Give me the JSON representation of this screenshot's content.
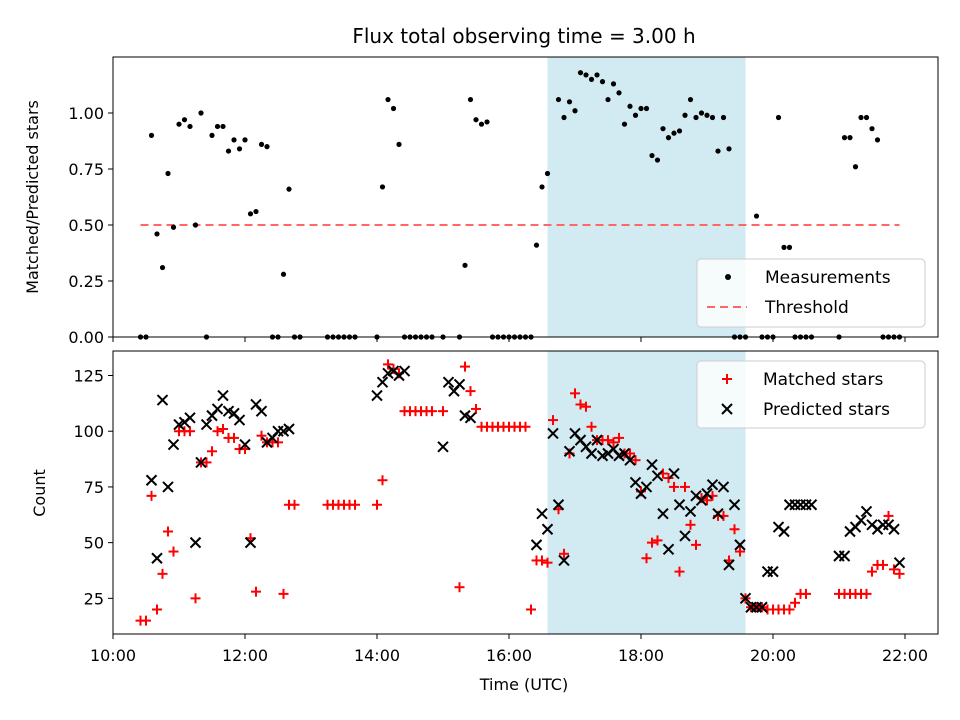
{
  "chart_data": [
    {
      "type": "scatter",
      "title": "Flux total observing time = 3.00 h",
      "xlabel": "",
      "ylabel": "Matched/Predicted stars",
      "xlim": [
        "10:00",
        "22:30"
      ],
      "ylim": [
        0.0,
        1.25
      ],
      "yticks": [
        "0.00",
        "0.25",
        "0.50",
        "0.75",
        "1.00"
      ],
      "ytick_values": [
        0.0,
        0.25,
        0.5,
        0.75,
        1.0
      ],
      "shaded_interval": [
        "16:35",
        "19:35"
      ],
      "legend": "bottom-right",
      "legend_entries": [
        "Measurements",
        "Threshold"
      ],
      "threshold": {
        "name": "Threshold",
        "value": 0.5,
        "x": [
          "10:25",
          "21:55"
        ],
        "color": "#ff6666"
      },
      "series": [
        {
          "name": "Measurements",
          "color": "#000000",
          "x": [
            "10:25",
            "10:30",
            "10:35",
            "10:40",
            "10:45",
            "10:50",
            "10:55",
            "11:00",
            "11:05",
            "11:10",
            "11:15",
            "11:20",
            "11:25",
            "11:30",
            "11:35",
            "11:40",
            "11:45",
            "11:50",
            "11:55",
            "12:00",
            "12:05",
            "12:10",
            "12:15",
            "12:20",
            "12:25",
            "12:30",
            "12:35",
            "12:40",
            "12:45",
            "12:50",
            "13:15",
            "13:20",
            "13:25",
            "13:30",
            "13:35",
            "13:40",
            "14:00",
            "14:05",
            "14:10",
            "14:15",
            "14:20",
            "14:25",
            "14:30",
            "14:35",
            "14:40",
            "14:45",
            "14:50",
            "15:00",
            "15:15",
            "15:20",
            "15:25",
            "15:30",
            "15:35",
            "15:40",
            "15:45",
            "15:50",
            "15:55",
            "16:00",
            "16:05",
            "16:10",
            "16:15",
            "16:20",
            "16:25",
            "16:30",
            "16:35",
            "16:45",
            "16:50",
            "16:55",
            "17:00",
            "17:05",
            "17:10",
            "17:15",
            "17:20",
            "17:25",
            "17:30",
            "17:35",
            "17:40",
            "17:45",
            "17:50",
            "17:55",
            "18:00",
            "18:05",
            "18:10",
            "18:15",
            "18:20",
            "18:25",
            "18:30",
            "18:35",
            "18:40",
            "18:45",
            "18:50",
            "18:55",
            "19:00",
            "19:05",
            "19:10",
            "19:15",
            "19:20",
            "19:25",
            "19:30",
            "19:35",
            "19:45",
            "19:50",
            "19:55",
            "20:00",
            "20:05",
            "20:10",
            "20:15",
            "20:20",
            "20:25",
            "20:30",
            "20:35",
            "21:00",
            "21:05",
            "21:10",
            "21:15",
            "21:20",
            "21:25",
            "21:30",
            "21:35",
            "21:40",
            "21:45",
            "21:50",
            "21:55"
          ],
          "y": [
            0.0,
            0.0,
            0.9,
            0.46,
            0.31,
            0.73,
            0.49,
            0.95,
            0.97,
            0.94,
            0.5,
            1.0,
            0.0,
            0.9,
            0.94,
            0.94,
            0.83,
            0.88,
            0.84,
            0.88,
            0.55,
            0.56,
            0.86,
            0.85,
            0.0,
            0.0,
            0.28,
            0.66,
            0.0,
            0.0,
            0.0,
            0.0,
            0.0,
            0.0,
            0.0,
            0.0,
            0.0,
            0.67,
            1.06,
            1.02,
            0.86,
            0.0,
            0.0,
            0.0,
            0.0,
            0.0,
            0.0,
            0.0,
            0.0,
            0.32,
            1.06,
            0.97,
            0.95,
            0.96,
            0.0,
            0.0,
            0.0,
            0.0,
            0.0,
            0.0,
            0.0,
            0.0,
            0.41,
            0.67,
            0.73,
            1.06,
            0.98,
            1.05,
            1.01,
            1.18,
            1.17,
            1.15,
            1.17,
            1.14,
            1.06,
            1.13,
            1.09,
            0.95,
            1.03,
            0.99,
            1.02,
            1.02,
            0.81,
            0.79,
            0.93,
            0.89,
            0.91,
            0.92,
            0.99,
            1.06,
            0.98,
            1.0,
            0.99,
            0.98,
            0.83,
            0.98,
            0.84,
            0.0,
            0.0,
            0.0,
            0.54,
            0.0,
            0.0,
            0.0,
            0.98,
            0.4,
            0.4,
            0.0,
            0.0,
            0.0,
            0.0,
            0.0,
            0.89,
            0.89,
            0.76,
            0.98,
            0.98,
            0.93,
            0.88,
            0.0,
            0.0,
            0.0,
            0.0
          ],
          "y_order": "by_x"
        }
      ]
    },
    {
      "type": "scatter",
      "title": "",
      "xlabel": "Time (UTC)",
      "ylabel": "Count",
      "xlim": [
        "10:00",
        "22:30"
      ],
      "ylim": [
        9,
        136
      ],
      "xticks": [
        "10:00",
        "12:00",
        "14:00",
        "16:00",
        "18:00",
        "20:00",
        "22:00"
      ],
      "yticks": [
        "25",
        "50",
        "75",
        "100",
        "125"
      ],
      "ytick_values": [
        25,
        50,
        75,
        100,
        125
      ],
      "shaded_interval": [
        "16:35",
        "19:35"
      ],
      "legend": "top-right",
      "legend_entries": [
        "Matched stars",
        "Predicted stars"
      ],
      "series": [
        {
          "name": "Matched stars",
          "marker": "plus",
          "color": "#ff0000",
          "x": [
            "10:25",
            "10:30",
            "10:35",
            "10:40",
            "10:45",
            "10:50",
            "10:55",
            "11:00",
            "11:05",
            "11:10",
            "11:15",
            "11:20",
            "11:25",
            "11:30",
            "11:35",
            "11:40",
            "11:45",
            "11:50",
            "11:55",
            "12:00",
            "12:05",
            "12:10",
            "12:15",
            "12:20",
            "12:25",
            "12:30",
            "12:35",
            "12:40",
            "12:45",
            "13:15",
            "13:20",
            "13:25",
            "13:30",
            "13:35",
            "13:40",
            "14:00",
            "14:05",
            "14:10",
            "14:15",
            "14:20",
            "14:25",
            "14:30",
            "14:35",
            "14:40",
            "14:45",
            "14:50",
            "15:00",
            "15:15",
            "15:20",
            "15:25",
            "15:30",
            "15:35",
            "15:40",
            "15:45",
            "15:50",
            "15:55",
            "16:00",
            "16:05",
            "16:10",
            "16:15",
            "16:20",
            "16:25",
            "16:30",
            "16:35",
            "16:40",
            "16:45",
            "16:50",
            "16:55",
            "17:00",
            "17:05",
            "17:10",
            "17:15",
            "17:20",
            "17:25",
            "17:30",
            "17:35",
            "17:40",
            "17:45",
            "17:50",
            "17:55",
            "18:00",
            "18:05",
            "18:10",
            "18:15",
            "18:20",
            "18:25",
            "18:30",
            "18:35",
            "18:40",
            "18:45",
            "18:50",
            "18:55",
            "19:00",
            "19:05",
            "19:10",
            "19:15",
            "19:20",
            "19:25",
            "19:30",
            "19:35",
            "19:40",
            "19:45",
            "19:50",
            "19:55",
            "20:00",
            "20:05",
            "20:10",
            "20:15",
            "20:20",
            "20:25",
            "20:30",
            "21:00",
            "21:05",
            "21:10",
            "21:15",
            "21:20",
            "21:25",
            "21:30",
            "21:35",
            "21:40",
            "21:45",
            "21:50",
            "21:55"
          ],
          "y": [
            15,
            15,
            71,
            20,
            36,
            55,
            46,
            100,
            100,
            100,
            25,
            86,
            86,
            91,
            100,
            101,
            97,
            97,
            92,
            92,
            52,
            28,
            98,
            95,
            95,
            95,
            27,
            67,
            67,
            67,
            67,
            67,
            67,
            67,
            67,
            67,
            78,
            130,
            128,
            126,
            109,
            109,
            109,
            109,
            109,
            109,
            109,
            30,
            129,
            118,
            110,
            102,
            102,
            102,
            102,
            102,
            102,
            102,
            102,
            102,
            20,
            42,
            42,
            41,
            105,
            65,
            45,
            90,
            117,
            112,
            111,
            102,
            96,
            96,
            96,
            95,
            97,
            90,
            90,
            87,
            73,
            43,
            50,
            51,
            81,
            79,
            75,
            37,
            75,
            58,
            49,
            70,
            69,
            71,
            62,
            62,
            42,
            56,
            46,
            25,
            21,
            21,
            21,
            20,
            20,
            20,
            20,
            20,
            23,
            27,
            27,
            27,
            27,
            27,
            27,
            27,
            27,
            37,
            40,
            40,
            62,
            38,
            36
          ],
          "y_order": "by_x"
        },
        {
          "name": "Predicted stars",
          "marker": "x",
          "color": "#000000",
          "x": [
            "10:35",
            "10:40",
            "10:45",
            "10:50",
            "10:55",
            "11:00",
            "11:05",
            "11:10",
            "11:15",
            "11:20",
            "11:25",
            "11:30",
            "11:35",
            "11:40",
            "11:45",
            "11:50",
            "11:55",
            "12:00",
            "12:05",
            "12:10",
            "12:15",
            "12:20",
            "12:25",
            "12:30",
            "12:35",
            "12:40",
            "14:00",
            "14:05",
            "14:10",
            "14:15",
            "14:20",
            "14:25",
            "15:00",
            "15:05",
            "15:10",
            "15:15",
            "15:20",
            "15:25",
            "16:25",
            "16:30",
            "16:35",
            "16:40",
            "16:45",
            "16:50",
            "16:55",
            "17:00",
            "17:05",
            "17:10",
            "17:15",
            "17:20",
            "17:25",
            "17:30",
            "17:35",
            "17:40",
            "17:45",
            "17:50",
            "17:55",
            "18:00",
            "18:05",
            "18:10",
            "18:15",
            "18:20",
            "18:25",
            "18:30",
            "18:35",
            "18:40",
            "18:45",
            "18:50",
            "18:55",
            "19:00",
            "19:05",
            "19:10",
            "19:15",
            "19:20",
            "19:25",
            "19:30",
            "19:35",
            "19:40",
            "19:45",
            "19:50",
            "19:55",
            "20:00",
            "20:05",
            "20:10",
            "20:15",
            "20:20",
            "20:25",
            "20:30",
            "20:35",
            "21:00",
            "21:05",
            "21:10",
            "21:15",
            "21:20",
            "21:25",
            "21:30",
            "21:35",
            "21:40",
            "21:45",
            "21:50",
            "21:55"
          ],
          "y": [
            78,
            43,
            114,
            75,
            94,
            103,
            104,
            106,
            50,
            86,
            103,
            107,
            110,
            116,
            109,
            108,
            105,
            94,
            50,
            112,
            109,
            95,
            97,
            100,
            100,
            101,
            116,
            122,
            126,
            127,
            125,
            127,
            93,
            122,
            118,
            121,
            107,
            106,
            49,
            63,
            56,
            99,
            67,
            42,
            91,
            99,
            96,
            93,
            90,
            96,
            89,
            90,
            92,
            89,
            90,
            87,
            77,
            72,
            75,
            85,
            80,
            63,
            47,
            81,
            67,
            53,
            64,
            71,
            69,
            72,
            76,
            63,
            75,
            40,
            67,
            49,
            25,
            21,
            21,
            21,
            37,
            37,
            57,
            55,
            67,
            67,
            67,
            67,
            67,
            44,
            44,
            55,
            57,
            60,
            64,
            58,
            56,
            58,
            58,
            56,
            41
          ],
          "y_order": "by_x"
        }
      ]
    }
  ]
}
